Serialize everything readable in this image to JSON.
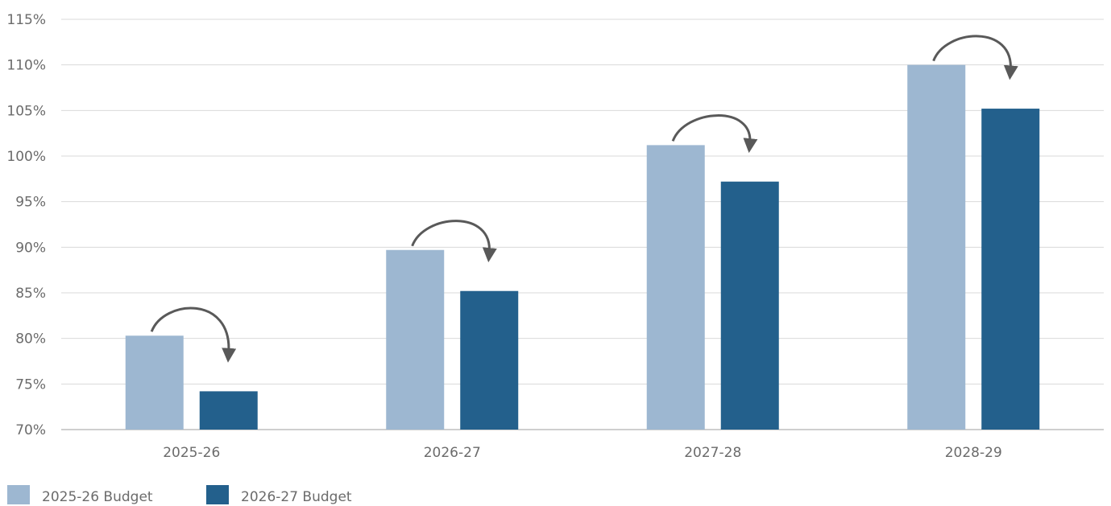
{
  "chart_data": {
    "type": "bar",
    "title": "",
    "xlabel": "",
    "ylabel": "",
    "categories": [
      "2025-26",
      "2026-27",
      "2027-28",
      "2028-29"
    ],
    "series": [
      {
        "name": "2025-26 Budget",
        "values": [
          80.3,
          89.7,
          101.2,
          110.0
        ],
        "color": "#9db7d1"
      },
      {
        "name": "2026-27 Budget",
        "values": [
          74.2,
          85.2,
          97.2,
          105.2
        ],
        "color": "#23608c"
      }
    ],
    "ylim": [
      70,
      115
    ],
    "yticks": [
      "70%",
      "75%",
      "80%",
      "85%",
      "90%",
      "95%",
      "100%",
      "105%",
      "110%",
      "115%"
    ],
    "grid": true,
    "legend_position": "bottom-left",
    "annotations": "curved arrow from first bar to second bar in each category",
    "colors": {
      "grid": "#d9d9d9",
      "axis": "#bfbfbf",
      "text": "#6b6b6b",
      "arrow": "#595959"
    }
  }
}
